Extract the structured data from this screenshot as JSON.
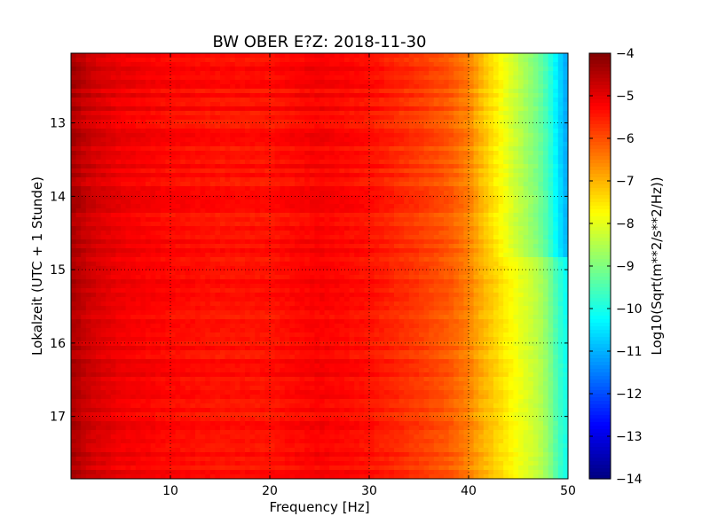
{
  "chart_data": {
    "type": "heatmap",
    "title": "BW OBER E?Z: 2018-11-30",
    "xlabel": "Frequency [Hz]",
    "ylabel": "Lokalzeit (UTC + 1 Stunde)",
    "xlim": [
      0,
      50
    ],
    "ylim": [
      12.05,
      17.85
    ],
    "y_inverted": true,
    "x_ticks": [
      10,
      20,
      30,
      40,
      50
    ],
    "y_ticks": [
      13,
      14,
      15,
      16,
      17
    ],
    "grid": true,
    "colormap": "jet",
    "colorbar": {
      "label": "Log10(Sqrt(m**2/s**2/Hz))",
      "range": [
        -14,
        -4
      ],
      "ticks": [
        -4,
        -5,
        -6,
        -7,
        -8,
        -9,
        -10,
        -11,
        -12,
        -13,
        -14
      ]
    },
    "frequency_profile": {
      "x": [
        0,
        2,
        5,
        10,
        15,
        20,
        25,
        30,
        35,
        38,
        40,
        41,
        42,
        43,
        44,
        45,
        46,
        47,
        48,
        49,
        50
      ],
      "values": [
        -4.4,
        -4.8,
        -5.1,
        -5.3,
        -5.4,
        -5.4,
        -5.2,
        -5.4,
        -5.8,
        -6.1,
        -6.5,
        -6.9,
        -7.2,
        -7.5,
        -7.8,
        -8.1,
        -8.4,
        -8.7,
        -9.2,
        -10.0,
        -10.6
      ]
    },
    "highfreq_shift": {
      "time": [
        12.05,
        13.0,
        14.0,
        14.8,
        14.85,
        16.0,
        17.0,
        17.75,
        17.85
      ],
      "values": [
        -0.6,
        -0.6,
        -0.5,
        -0.4,
        0.3,
        0.4,
        0.5,
        0.5,
        0.5
      ]
    }
  }
}
